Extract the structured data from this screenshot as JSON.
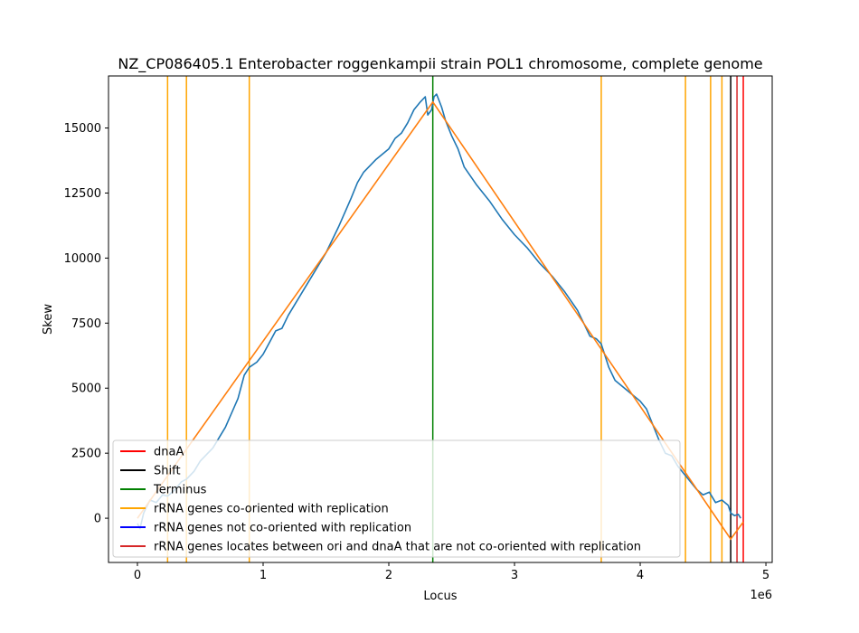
{
  "chart_data": {
    "type": "line",
    "title": "NZ_CP086405.1 Enterobacter roggenkampii strain POL1 chromosome, complete genome",
    "xlabel": "Locus",
    "ylabel": "Skew",
    "x_offset_label": "1e6",
    "xlim": [
      -230000,
      5050000
    ],
    "ylim": [
      -1700,
      17000
    ],
    "x_ticks": [
      0,
      1000000,
      2000000,
      3000000,
      4000000,
      5000000
    ],
    "x_tick_labels": [
      "0",
      "1",
      "2",
      "3",
      "4",
      "5"
    ],
    "y_ticks": [
      0,
      2500,
      5000,
      7500,
      10000,
      12500,
      15000
    ],
    "y_tick_labels": [
      "0",
      "2500",
      "5000",
      "7500",
      "10000",
      "12500",
      "15000"
    ],
    "grid": false,
    "legend_position": "lower-left",
    "skew_series": {
      "color": "#1f77b4",
      "x": [
        0,
        20000,
        50000,
        80000,
        100000,
        150000,
        200000,
        240000,
        300000,
        350000,
        390000,
        450000,
        500000,
        600000,
        700000,
        800000,
        850000,
        890000,
        950000,
        1000000,
        1100000,
        1150000,
        1200000,
        1300000,
        1400000,
        1500000,
        1600000,
        1700000,
        1750000,
        1800000,
        1900000,
        2000000,
        2050000,
        2100000,
        2150000,
        2200000,
        2250000,
        2290000,
        2310000,
        2340000,
        2360000,
        2380000,
        2420000,
        2450000,
        2500000,
        2550000,
        2600000,
        2700000,
        2800000,
        2900000,
        3000000,
        3100000,
        3200000,
        3300000,
        3400000,
        3500000,
        3550000,
        3600000,
        3650000,
        3690000,
        3750000,
        3800000,
        3900000,
        4000000,
        4050000,
        4100000,
        4150000,
        4200000,
        4250000,
        4300000,
        4350000,
        4400000,
        4450000,
        4500000,
        4550000,
        4600000,
        4650000,
        4700000,
        4720000,
        4750000,
        4780000,
        4800000
      ],
      "y": [
        -200,
        -400,
        200,
        500,
        700,
        600,
        900,
        850,
        1100,
        1400,
        1500,
        1800,
        2200,
        2700,
        3500,
        4600,
        5500,
        5800,
        6000,
        6300,
        7200,
        7300,
        7800,
        8600,
        9400,
        10200,
        11200,
        12300,
        12900,
        13300,
        13800,
        14200,
        14600,
        14800,
        15200,
        15700,
        16000,
        16200,
        15500,
        15700,
        16200,
        16300,
        15800,
        15300,
        14700,
        14200,
        13500,
        12800,
        12200,
        11500,
        10900,
        10400,
        9800,
        9300,
        8700,
        8000,
        7500,
        7000,
        6900,
        6700,
        5800,
        5300,
        4900,
        4500,
        4200,
        3600,
        3000,
        2500,
        2400,
        2000,
        1700,
        1400,
        1100,
        900,
        1000,
        600,
        700,
        500,
        200,
        100,
        150,
        0
      ]
    },
    "fit_series": {
      "color": "#ff7f0e",
      "x": [
        0,
        2350000,
        4720000,
        4820000
      ],
      "y": [
        0,
        16000,
        -800,
        -150
      ]
    },
    "vertical_lines": {
      "rrna_co_oriented": {
        "color": "#ffa500",
        "x": [
          240000,
          390000,
          890000,
          3690000,
          4360000,
          4560000,
          4650000
        ]
      },
      "terminus": {
        "color": "#008000",
        "x": [
          2350000
        ]
      },
      "shift": {
        "color": "#000000",
        "x": [
          4720000
        ]
      },
      "dnaA": {
        "color": "#ff0000",
        "x": [
          4820000
        ]
      },
      "rrna_between_ori_dnaA": {
        "color": "#d62728",
        "x": [
          4770000
        ]
      }
    },
    "legend": [
      {
        "label": "dnaA",
        "color": "#ff0000"
      },
      {
        "label": "Shift",
        "color": "#000000"
      },
      {
        "label": "Terminus",
        "color": "#008000"
      },
      {
        "label": "rRNA genes co-oriented with replication",
        "color": "#ffa500"
      },
      {
        "label": "rRNA genes not co-oriented with replication",
        "color": "#0000ff"
      },
      {
        "label": "rRNA genes locates between ori and dnaA that are not co-oriented with replication",
        "color": "#d62728"
      }
    ]
  }
}
